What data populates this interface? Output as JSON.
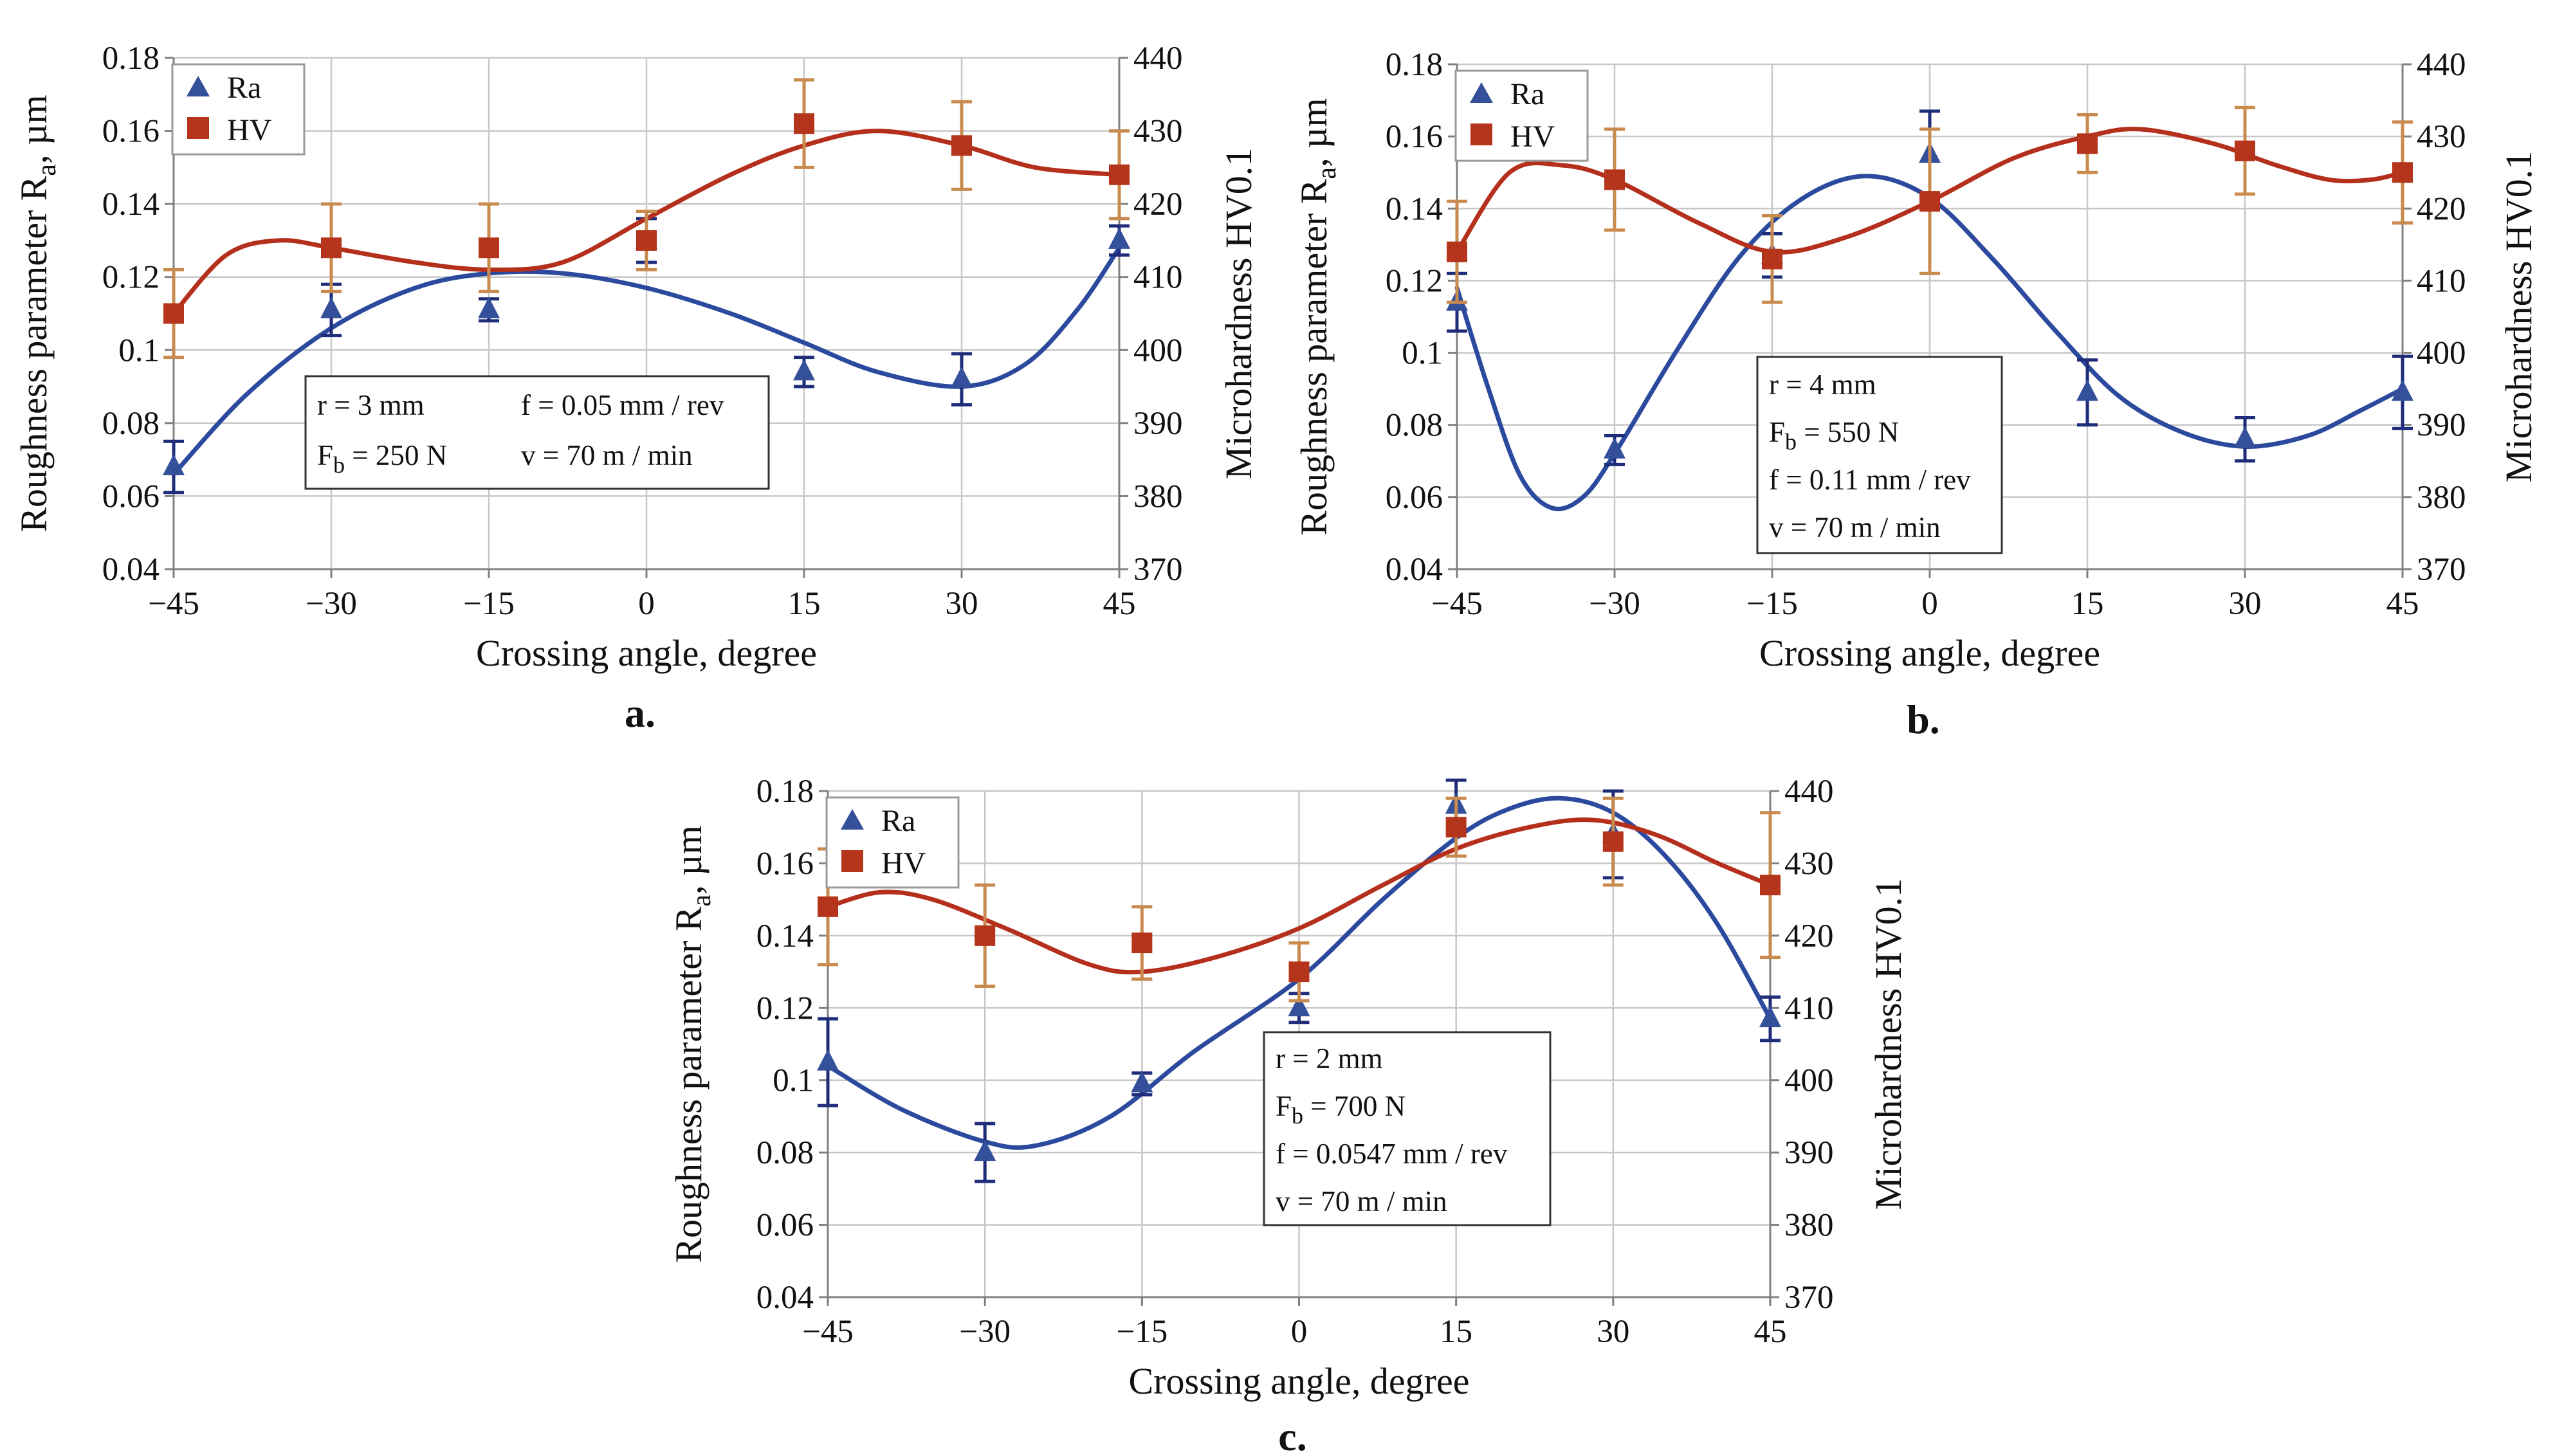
{
  "figure": {
    "colors": {
      "ra_fit": "#2b4a9e",
      "ra_marker": "#34509a",
      "ra_error": "#1f2c7a",
      "hv_fit": "#b5301c",
      "hv_marker": "#b5351c",
      "hv_error": "#c98a4e",
      "grid": "#c8c8c8",
      "axis": "#808080"
    },
    "legend": {
      "ra": "Ra",
      "hv": "HV"
    },
    "marker_icons": {
      "ra": "triangle-icon",
      "hv": "square-icon"
    }
  },
  "chart_data": [
    {
      "id": "a",
      "panel_label": "a.",
      "type": "line",
      "title": "",
      "xlabel": "Crossing angle, degree",
      "ylabel_left": "Roughness parameter Ra, µm",
      "ylabel_left_parts": {
        "main": "Roughness parameter R",
        "sub": "a",
        "tail": ", µm"
      },
      "ylabel_right": "Microhardness HV0.1",
      "x": [
        -45,
        -30,
        -15,
        0,
        15,
        30,
        45
      ],
      "xticks": [
        "−45",
        "−30",
        "−15",
        "0",
        "15",
        "30",
        "45"
      ],
      "yticks_left": [
        "0.04",
        "0.06",
        "0.08",
        "0.1",
        "0.12",
        "0.14",
        "0.16",
        "0.18"
      ],
      "yticks_right": [
        "370",
        "380",
        "390",
        "400",
        "410",
        "420",
        "430",
        "440"
      ],
      "ylim_left": [
        0.04,
        0.18
      ],
      "ylim_right": [
        370,
        440
      ],
      "grid": true,
      "legend_position": "top-left",
      "series": [
        {
          "name": "Ra",
          "axis": "left",
          "values": [
            0.068,
            0.111,
            0.111,
            0.13,
            0.094,
            0.092,
            0.13
          ],
          "errors": [
            0.007,
            0.007,
            0.003,
            0.006,
            0.004,
            0.007,
            0.004
          ],
          "fit": [
            [
              -45,
              0.066
            ],
            [
              -38,
              0.088
            ],
            [
              -30,
              0.106
            ],
            [
              -22,
              0.117
            ],
            [
              -15,
              0.121
            ],
            [
              -8,
              0.121
            ],
            [
              0,
              0.117
            ],
            [
              8,
              0.11
            ],
            [
              15,
              0.102
            ],
            [
              22,
              0.094
            ],
            [
              30,
              0.09
            ],
            [
              36,
              0.096
            ],
            [
              41,
              0.111
            ],
            [
              45,
              0.128
            ]
          ]
        },
        {
          "name": "HV",
          "axis": "right",
          "values": [
            405,
            414,
            414,
            415,
            431,
            428,
            424
          ],
          "errors": [
            6,
            6,
            6,
            4,
            6,
            6,
            6
          ],
          "fit": [
            [
              -45,
              405
            ],
            [
              -40,
              413
            ],
            [
              -35,
              415
            ],
            [
              -30,
              414
            ],
            [
              -22,
              412
            ],
            [
              -15,
              411
            ],
            [
              -8,
              412
            ],
            [
              0,
              418
            ],
            [
              8,
              424
            ],
            [
              15,
              428
            ],
            [
              22,
              430
            ],
            [
              30,
              428
            ],
            [
              37,
              425
            ],
            [
              45,
              424
            ]
          ]
        }
      ],
      "info_box": [
        "r = 3 mm",
        "f = 0.05 mm / rev",
        "F",
        "b",
        " = 250 N",
        "v = 70 m / min"
      ]
    },
    {
      "id": "b",
      "panel_label": "b.",
      "type": "line",
      "title": "",
      "xlabel": "Crossing angle, degree",
      "ylabel_left": "Roughness parameter Ra, µm",
      "ylabel_left_parts": {
        "main": "Roughness parameter R",
        "sub": "a",
        "tail": ", µm"
      },
      "ylabel_right": "Microhardness HV0.1",
      "x": [
        -45,
        -30,
        -15,
        0,
        15,
        30,
        45
      ],
      "xticks": [
        "−45",
        "−30",
        "−15",
        "0",
        "15",
        "30",
        "45"
      ],
      "yticks_left": [
        "0.04",
        "0.06",
        "0.08",
        "0.1",
        "0.12",
        "0.14",
        "0.16",
        "0.18"
      ],
      "yticks_right": [
        "370",
        "380",
        "390",
        "400",
        "410",
        "420",
        "430",
        "440"
      ],
      "ylim_left": [
        0.04,
        0.18
      ],
      "ylim_right": [
        370,
        440
      ],
      "grid": true,
      "legend_position": "top-left",
      "series": [
        {
          "name": "Ra",
          "axis": "left",
          "values": [
            0.114,
            0.073,
            0.127,
            0.155,
            0.089,
            0.076,
            0.089
          ],
          "errors": [
            0.008,
            0.004,
            0.006,
            0.012,
            0.009,
            0.006,
            0.01
          ],
          "fit": [
            [
              -45,
              0.118
            ],
            [
              -42,
              0.09
            ],
            [
              -39,
              0.066
            ],
            [
              -36,
              0.057
            ],
            [
              -33,
              0.06
            ],
            [
              -30,
              0.072
            ],
            [
              -24,
              0.101
            ],
            [
              -18,
              0.127
            ],
            [
              -12,
              0.143
            ],
            [
              -6,
              0.149
            ],
            [
              0,
              0.143
            ],
            [
              6,
              0.126
            ],
            [
              12,
              0.106
            ],
            [
              18,
              0.088
            ],
            [
              24,
              0.078
            ],
            [
              30,
              0.074
            ],
            [
              36,
              0.077
            ],
            [
              41,
              0.084
            ],
            [
              45,
              0.09
            ]
          ]
        },
        {
          "name": "HV",
          "axis": "right",
          "values": [
            414,
            424,
            413,
            421,
            429,
            428,
            425
          ],
          "errors": [
            7,
            7,
            6,
            10,
            4,
            6,
            7
          ],
          "fit": [
            [
              -45,
              414
            ],
            [
              -40,
              425
            ],
            [
              -35,
              426
            ],
            [
              -30,
              424
            ],
            [
              -22,
              418
            ],
            [
              -15,
              414
            ],
            [
              -8,
              416
            ],
            [
              0,
              421
            ],
            [
              8,
              427
            ],
            [
              15,
              430
            ],
            [
              20,
              431
            ],
            [
              27,
              429
            ],
            [
              33,
              426
            ],
            [
              38,
              424
            ],
            [
              42,
              424
            ],
            [
              45,
              425
            ]
          ]
        }
      ],
      "info_box": [
        "r = 4 mm",
        "F",
        "b",
        " = 550 N",
        "f = 0.11 mm / rev",
        "v = 70 m / min"
      ]
    },
    {
      "id": "c",
      "panel_label": "c.",
      "type": "line",
      "title": "",
      "xlabel": "Crossing angle, degree",
      "ylabel_left": "Roughness parameter Ra, µm",
      "ylabel_left_parts": {
        "main": "Roughness parameter R",
        "sub": "a",
        "tail": ", µm"
      },
      "ylabel_right": "Microhardness HV0.1",
      "x": [
        -45,
        -30,
        -15,
        0,
        15,
        30,
        45
      ],
      "xticks": [
        "−45",
        "−30",
        "−15",
        "0",
        "15",
        "30",
        "45"
      ],
      "yticks_left": [
        "0.04",
        "0.06",
        "0.08",
        "0.1",
        "0.12",
        "0.14",
        "0.16",
        "0.18"
      ],
      "yticks_right": [
        "370",
        "380",
        "390",
        "400",
        "410",
        "420",
        "430",
        "440"
      ],
      "ylim_left": [
        0.04,
        0.18
      ],
      "ylim_right": [
        370,
        440
      ],
      "grid": true,
      "legend_position": "top-left",
      "series": [
        {
          "name": "Ra",
          "axis": "left",
          "values": [
            0.105,
            0.08,
            0.099,
            0.12,
            0.176,
            0.168,
            0.117
          ],
          "errors": [
            0.012,
            0.008,
            0.003,
            0.004,
            0.007,
            0.012,
            0.006
          ],
          "fit": [
            [
              -45,
              0.104
            ],
            [
              -38,
              0.092
            ],
            [
              -30,
              0.083
            ],
            [
              -25,
              0.082
            ],
            [
              -18,
              0.09
            ],
            [
              -10,
              0.108
            ],
            [
              0,
              0.128
            ],
            [
              8,
              0.15
            ],
            [
              15,
              0.167
            ],
            [
              20,
              0.175
            ],
            [
              25,
              0.178
            ],
            [
              30,
              0.174
            ],
            [
              35,
              0.162
            ],
            [
              40,
              0.143
            ],
            [
              45,
              0.117
            ]
          ]
        },
        {
          "name": "HV",
          "axis": "right",
          "values": [
            424,
            420,
            419,
            415,
            435,
            433,
            427
          ],
          "errors": [
            8,
            7,
            5,
            4,
            4,
            6,
            10
          ],
          "fit": [
            [
              -45,
              424
            ],
            [
              -40,
              426
            ],
            [
              -35,
              425
            ],
            [
              -28,
              421
            ],
            [
              -20,
              416
            ],
            [
              -15,
              415
            ],
            [
              -8,
              417
            ],
            [
              0,
              421
            ],
            [
              8,
              427
            ],
            [
              15,
              432
            ],
            [
              22,
              435
            ],
            [
              28,
              436
            ],
            [
              34,
              434
            ],
            [
              40,
              430
            ],
            [
              45,
              427
            ]
          ]
        }
      ],
      "info_box": [
        "r = 2 mm",
        "F",
        "b",
        " = 700 N",
        "f = 0.0547 mm / rev",
        "v = 70 m / min"
      ]
    }
  ]
}
